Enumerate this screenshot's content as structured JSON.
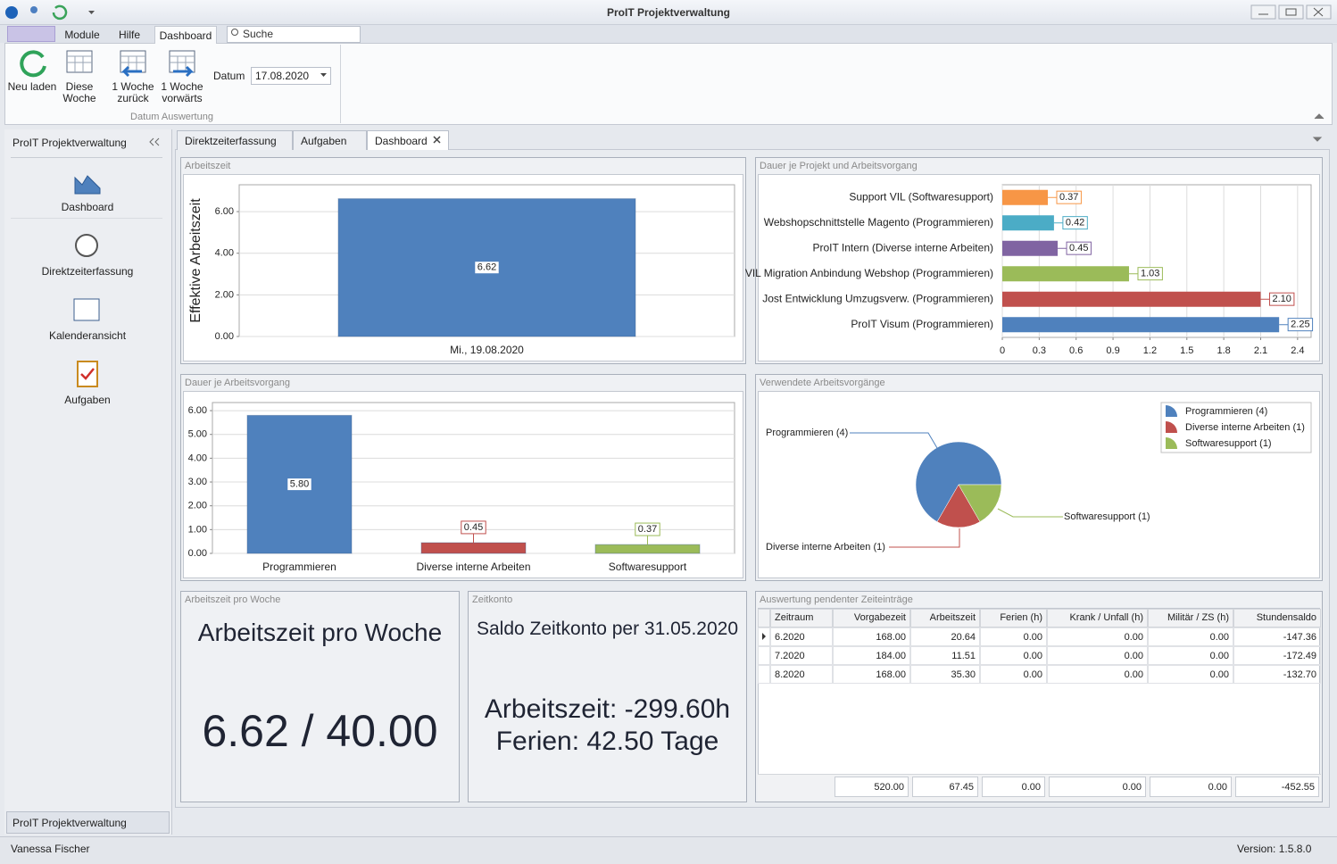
{
  "window": {
    "title": "ProIT Projektverwaltung"
  },
  "ribbon": {
    "tabs": [
      "Module",
      "Hilfe",
      "Dashboard"
    ],
    "search": "Suche",
    "buttons": [
      "Neu laden",
      "Diese Woche",
      "1 Woche zurück",
      "1 Woche vorwärts"
    ],
    "date_label": "Datum",
    "date": "17.08.2020",
    "group": "Datum Auswertung"
  },
  "sidebar": {
    "title": "ProIT Projektverwaltung",
    "items": [
      "Dashboard",
      "Direktzeiterfassung",
      "Kalenderansicht",
      "Aufgaben"
    ],
    "footer": "ProIT Projektverwaltung"
  },
  "document_tabs": [
    "Direktzeiterfassung",
    "Aufgaben",
    "Dashboard"
  ],
  "chart_data": [
    {
      "type": "bar",
      "title": "Arbeitszeit",
      "y_label": "Effektive Arbeitszeit",
      "categories": [
        "Mi., 19.08.2020"
      ],
      "values": [
        6.62
      ],
      "color": "#4f81bd",
      "ylim": [
        0,
        7.29
      ],
      "yticks": [
        {
          "value": 0,
          "label": "0.00"
        },
        {
          "value": 2,
          "label": "2.00"
        },
        {
          "value": 4,
          "label": "4.00"
        },
        {
          "value": 6,
          "label": "6.00"
        }
      ],
      "grid": true
    },
    {
      "type": "bar",
      "title": "Dauer je Arbeitsvorgang",
      "categories": [
        "Programmieren",
        "Diverse interne Arbeiten",
        "Softwaresupport"
      ],
      "values": [
        5.8,
        0.45,
        0.37
      ],
      "value_labels": [
        "5.80",
        "0.45",
        "0.37"
      ],
      "colors": [
        "#4f81bd",
        "#c0504d",
        "#9bbb59"
      ],
      "ylim": [
        0,
        6.34
      ],
      "yticks": [
        {
          "value": 0,
          "label": "0.00"
        },
        {
          "value": 1,
          "label": "1.00"
        },
        {
          "value": 2,
          "label": "2.00"
        },
        {
          "value": 3,
          "label": "3.00"
        },
        {
          "value": 4,
          "label": "4.00"
        },
        {
          "value": 5,
          "label": "5.00"
        },
        {
          "value": 6,
          "label": "6.00"
        }
      ],
      "grid": true
    },
    {
      "type": "hbar",
      "title": "Dauer je Projekt und Arbeitsvorgang",
      "categories": [
        "Support VIL (Softwaresupport)",
        "Webshopschnittstelle Magento (Programmieren)",
        "ProIT Intern  (Diverse interne Arbeiten)",
        "VIL Migration Anbindung Webshop (Programmieren)",
        "Jost Entwicklung Umzugsverw. (Programmieren)",
        "ProIT Visum  (Programmieren)"
      ],
      "values": [
        0.37,
        0.42,
        0.45,
        1.03,
        2.1,
        2.25
      ],
      "value_labels": [
        "0.37",
        "0.42",
        "0.45",
        "1.03",
        "2.10",
        "2.25"
      ],
      "colors": [
        "#f79646",
        "#4bacc6",
        "#8064a2",
        "#9bbb59",
        "#c0504d",
        "#4f81bd"
      ],
      "xlim": [
        0,
        2.51
      ],
      "xticks": [
        0,
        0.3,
        0.6,
        0.9,
        1.2,
        1.5,
        1.8,
        2.1,
        2.4
      ],
      "grid": true
    },
    {
      "type": "pie",
      "title": "Verwendete Arbeitsvorgänge",
      "categories": [
        "Programmieren (4)",
        "Diverse interne Arbeiten (1)",
        "Softwaresupport (1)"
      ],
      "values": [
        4,
        1,
        1
      ],
      "colors": [
        "#4f81bd",
        "#c0504d",
        "#9bbb59"
      ],
      "legend": "top-right"
    }
  ],
  "weekly": {
    "title": "Arbeitszeit pro Woche",
    "heading": "Arbeitszeit pro Woche",
    "value": "6.62 / 40.00"
  },
  "account": {
    "title": "Zeitkonto",
    "heading": "Saldo Zeitkonto per 31.05.2020",
    "lines": [
      "Arbeitszeit: -299.60h",
      "Ferien: 42.50 Tage"
    ]
  },
  "table": {
    "title": "Auswertung pendenter Zeiteinträge",
    "columns": [
      "Zeitraum",
      "Vorgabezeit",
      "Arbeitszeit",
      "Ferien (h)",
      "Krank / Unfall (h)",
      "Militär / ZS (h)",
      "Stundensaldo"
    ],
    "rows": [
      [
        "6.2020",
        "168.00",
        "20.64",
        "0.00",
        "0.00",
        "0.00",
        "-147.36"
      ],
      [
        "7.2020",
        "184.00",
        "11.51",
        "0.00",
        "0.00",
        "0.00",
        "-172.49"
      ],
      [
        "8.2020",
        "168.00",
        "35.30",
        "0.00",
        "0.00",
        "0.00",
        "-132.70"
      ]
    ],
    "totals": [
      "520.00",
      "67.45",
      "0.00",
      "0.00",
      "0.00",
      "-452.55"
    ]
  },
  "status": {
    "user": "Vanessa Fischer",
    "version": "Version: 1.5.8.0"
  }
}
